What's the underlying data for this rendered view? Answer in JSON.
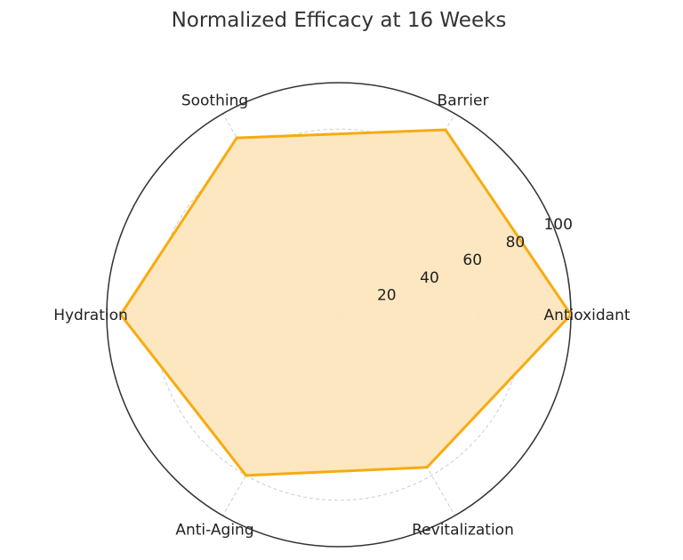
{
  "chart_data": {
    "type": "radar",
    "title": "Normalized Efficacy at 16 Weeks",
    "categories": [
      "Antioxidant",
      "Barrier",
      "Soothing",
      "Hydration",
      "Anti-Aging",
      "Revitalization"
    ],
    "series": [
      {
        "values": [
          100,
          92,
          88,
          94,
          80,
          76
        ]
      }
    ],
    "rlim": [
      0,
      100
    ],
    "rticks": [
      20,
      40,
      60,
      80,
      100
    ],
    "grid": true,
    "colors": {
      "line": "#f7ab10",
      "fill": "#fde6bd"
    }
  }
}
